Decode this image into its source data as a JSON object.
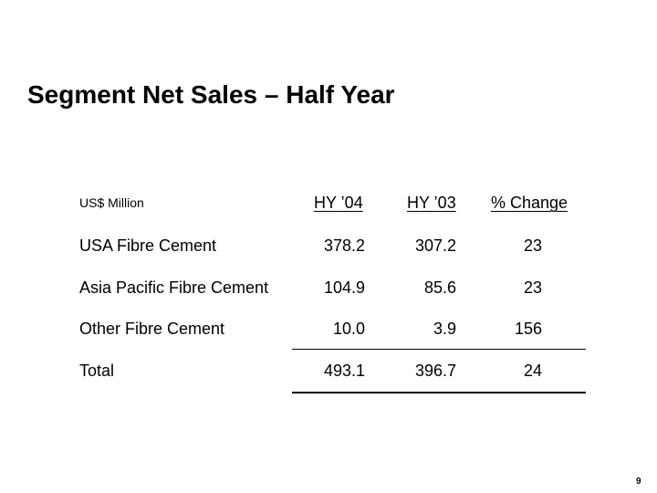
{
  "slide": {
    "title": "Segment Net Sales – Half Year",
    "page_number": "9"
  },
  "table": {
    "unit_label": "US$ Million",
    "columns": [
      "HY ’04",
      "HY ’03",
      "% Change"
    ],
    "rows": [
      {
        "label": "USA Fibre Cement",
        "hy04": "378.2",
        "hy03": "307.2",
        "change": "23"
      },
      {
        "label": "Asia Pacific Fibre Cement",
        "hy04": "104.9",
        "hy03": "85.6",
        "change": "23"
      },
      {
        "label": "Other Fibre Cement",
        "hy04": "10.0",
        "hy03": "3.9",
        "change": "156"
      },
      {
        "label": "Total",
        "hy04": "493.1",
        "hy03": "396.7",
        "change": "24"
      }
    ]
  }
}
